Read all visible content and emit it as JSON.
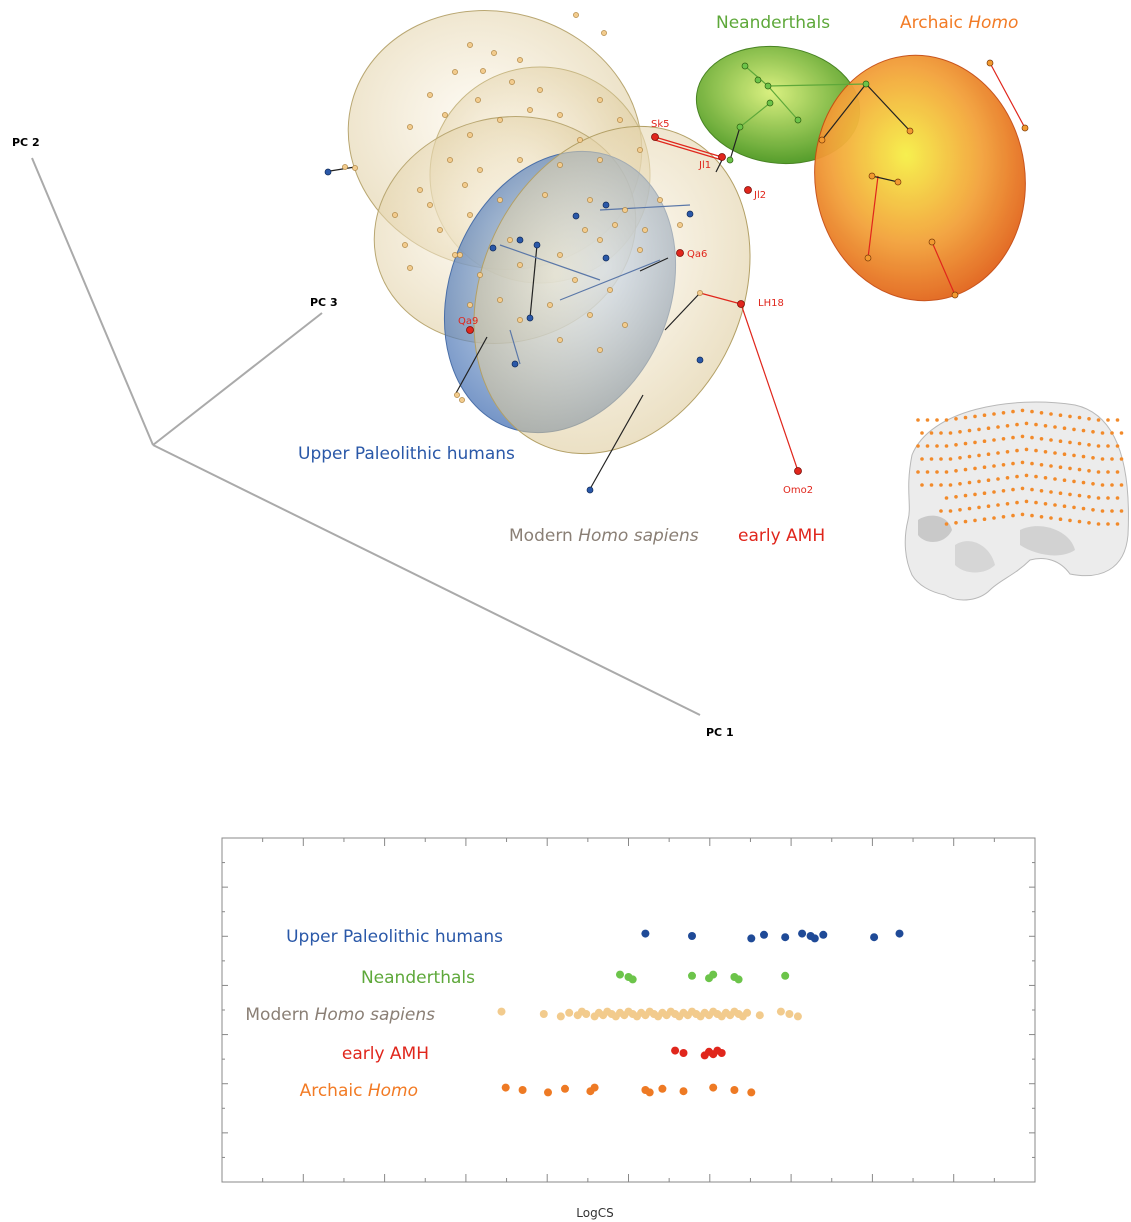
{
  "colors": {
    "modern": "#8a7f75",
    "modern_pt": "#f2cb8d",
    "upper": "#2a58a8",
    "upper_pt": "#1f4a97",
    "neander": "#5ea83a",
    "neander_pt": "#6cc44a",
    "archaic": "#f27b25",
    "archaic_pt": "#ee7a24",
    "early": "#e0261c"
  },
  "pca": {
    "axes": {
      "pc1": "PC 1",
      "pc2": "PC 2",
      "pc3": "PC 3"
    },
    "group_labels": {
      "neanderthals": "Neanderthals",
      "archaic_prefix": "Archaic ",
      "archaic_italic": "Homo",
      "upper": "Upper Paleolithic humans",
      "modern_prefix": "Modern ",
      "modern_italic": "Homo sapiens",
      "early": "early AMH"
    },
    "specimens": [
      "Sk5",
      "Jl1",
      "Jl2",
      "Qa6",
      "LH18",
      "Qa9",
      "Omo2"
    ]
  },
  "chart_data": {
    "type": "scatter",
    "xlabel": "LogCS",
    "series": [
      {
        "name": "Upper Paleolithic humans",
        "color": "upper_pt",
        "values": [
          6.5,
          6.555,
          6.625,
          6.64,
          6.665,
          6.685,
          6.695,
          6.7,
          6.71,
          6.77,
          6.8
        ]
      },
      {
        "name": "Neanderthals",
        "color": "neander_pt",
        "values": [
          6.47,
          6.48,
          6.485,
          6.555,
          6.575,
          6.58,
          6.605,
          6.61,
          6.665
        ]
      },
      {
        "name": "Modern Homo sapiens",
        "color": "modern_pt",
        "values": [
          6.33,
          6.38,
          6.4,
          6.41,
          6.42,
          6.425,
          6.43,
          6.44,
          6.445,
          6.45,
          6.455,
          6.46,
          6.465,
          6.47,
          6.475,
          6.48,
          6.485,
          6.49,
          6.495,
          6.5,
          6.505,
          6.51,
          6.515,
          6.52,
          6.525,
          6.53,
          6.535,
          6.54,
          6.545,
          6.55,
          6.555,
          6.56,
          6.565,
          6.57,
          6.575,
          6.58,
          6.585,
          6.59,
          6.595,
          6.6,
          6.605,
          6.61,
          6.615,
          6.62,
          6.635,
          6.66,
          6.67,
          6.68
        ]
      },
      {
        "name": "early AMH",
        "color": "early",
        "values": [
          6.535,
          6.545,
          6.57,
          6.575,
          6.58,
          6.585,
          6.59
        ]
      },
      {
        "name": "Archaic Homo",
        "color": "archaic_pt",
        "values": [
          6.335,
          6.355,
          6.385,
          6.405,
          6.435,
          6.44,
          6.5,
          6.505,
          6.52,
          6.545,
          6.58,
          6.605,
          6.625
        ]
      }
    ],
    "strip_labels": [
      {
        "prefix": "Upper Paleolithic humans",
        "italic": "",
        "color": "upper"
      },
      {
        "prefix": "Neanderthals",
        "italic": "",
        "color": "neander"
      },
      {
        "prefix": "Modern ",
        "italic": "Homo sapiens",
        "color": "modern"
      },
      {
        "prefix": "early AMH",
        "italic": "",
        "color": "early"
      },
      {
        "prefix": "Archaic ",
        "italic": "Homo",
        "color": "archaic"
      }
    ],
    "xlim": [
      6.0,
      6.96
    ],
    "grid": false
  }
}
